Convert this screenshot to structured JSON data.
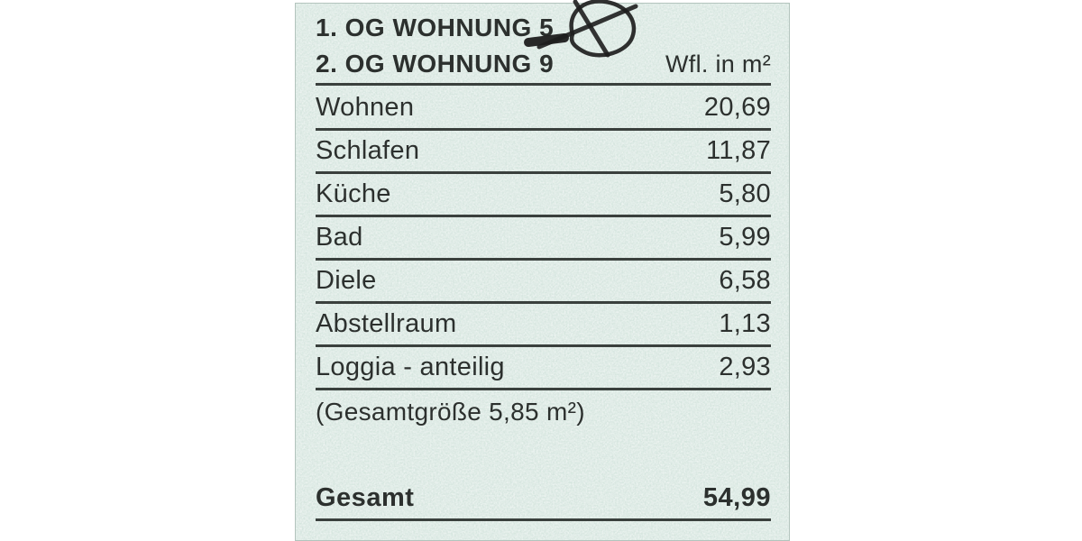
{
  "header": {
    "line1": "1. OG WOHNUNG 5",
    "line2": "2. OG WOHNUNG 9",
    "unit_label": "Wfl. in m²"
  },
  "annotation": {
    "mark": "handwritten-circled-x-crossout"
  },
  "table": {
    "rows": [
      {
        "label": "Wohnen",
        "value": "20,69"
      },
      {
        "label": "Schlafen",
        "value": "11,87"
      },
      {
        "label": "Küche",
        "value": "5,80"
      },
      {
        "label": "Bad",
        "value": "5,99"
      },
      {
        "label": "Diele",
        "value": "6,58"
      },
      {
        "label": "Abstellraum",
        "value": "1,13"
      },
      {
        "label": "Loggia - anteilig",
        "value": "2,93"
      }
    ],
    "note": "(Gesamtgröße 5,85 m²)",
    "total": {
      "label": "Gesamt",
      "value": "54,99"
    }
  },
  "colors": {
    "page_background": "#ffffff",
    "paper": "#d6e6df",
    "ink": "#2c302e",
    "rule": "#3a403d",
    "handwriting": "#1e1e1e"
  }
}
